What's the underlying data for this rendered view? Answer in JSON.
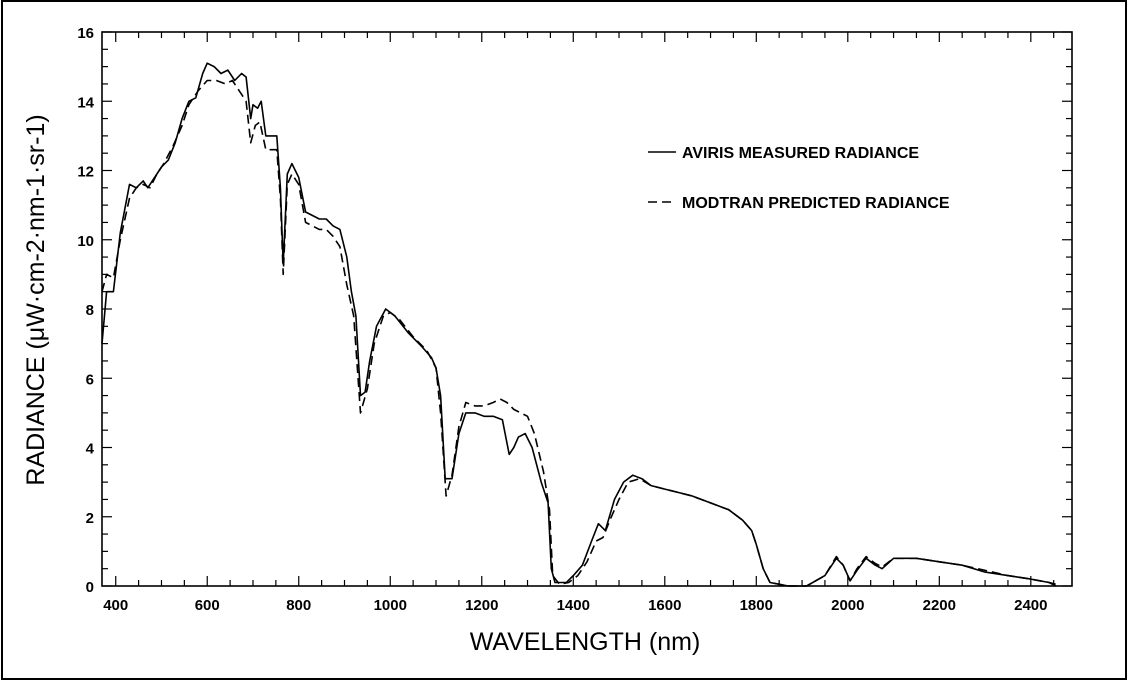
{
  "chart_data": {
    "type": "line",
    "xlabel": "WAVELENGTH (nm)",
    "ylabel": "RADIANCE (μW·cm-2·nm-1·sr-1)",
    "xlim": [
      370,
      2490
    ],
    "ylim": [
      0,
      16
    ],
    "x_ticks": [
      400,
      600,
      800,
      1000,
      1200,
      1400,
      1600,
      1800,
      2000,
      2200,
      2400
    ],
    "y_ticks": [
      0,
      2,
      4,
      6,
      8,
      10,
      12,
      14,
      16
    ],
    "legend_position": "top-right",
    "grid": false,
    "series": [
      {
        "name": "AVIRIS MEASURED RADIANCE",
        "style": "solid",
        "color": "#000000",
        "points": [
          [
            370,
            7.0
          ],
          [
            380,
            8.5
          ],
          [
            395,
            8.5
          ],
          [
            410,
            10.2
          ],
          [
            430,
            11.6
          ],
          [
            445,
            11.5
          ],
          [
            460,
            11.7
          ],
          [
            470,
            11.5
          ],
          [
            485,
            11.8
          ],
          [
            500,
            12.1
          ],
          [
            515,
            12.3
          ],
          [
            530,
            12.8
          ],
          [
            545,
            13.5
          ],
          [
            560,
            14.0
          ],
          [
            575,
            14.1
          ],
          [
            590,
            14.8
          ],
          [
            600,
            15.1
          ],
          [
            615,
            15.0
          ],
          [
            630,
            14.8
          ],
          [
            645,
            14.9
          ],
          [
            660,
            14.6
          ],
          [
            675,
            14.8
          ],
          [
            685,
            14.7
          ],
          [
            695,
            13.5
          ],
          [
            700,
            13.9
          ],
          [
            710,
            13.8
          ],
          [
            718,
            14.0
          ],
          [
            728,
            13.0
          ],
          [
            740,
            13.0
          ],
          [
            752,
            13.0
          ],
          [
            760,
            11.5
          ],
          [
            766,
            9.3
          ],
          [
            775,
            11.9
          ],
          [
            785,
            12.2
          ],
          [
            800,
            11.8
          ],
          [
            815,
            10.8
          ],
          [
            830,
            10.7
          ],
          [
            845,
            10.6
          ],
          [
            860,
            10.6
          ],
          [
            875,
            10.4
          ],
          [
            890,
            10.3
          ],
          [
            905,
            9.5
          ],
          [
            915,
            8.5
          ],
          [
            925,
            7.8
          ],
          [
            935,
            5.5
          ],
          [
            945,
            5.6
          ],
          [
            955,
            6.5
          ],
          [
            970,
            7.5
          ],
          [
            990,
            8.0
          ],
          [
            1010,
            7.8
          ],
          [
            1040,
            7.3
          ],
          [
            1070,
            6.9
          ],
          [
            1090,
            6.6
          ],
          [
            1100,
            6.3
          ],
          [
            1110,
            5.5
          ],
          [
            1120,
            3.1
          ],
          [
            1135,
            3.1
          ],
          [
            1150,
            4.4
          ],
          [
            1165,
            5.0
          ],
          [
            1185,
            5.0
          ],
          [
            1205,
            4.9
          ],
          [
            1225,
            4.9
          ],
          [
            1245,
            4.8
          ],
          [
            1260,
            3.8
          ],
          [
            1270,
            4.0
          ],
          [
            1280,
            4.3
          ],
          [
            1295,
            4.4
          ],
          [
            1310,
            4.0
          ],
          [
            1330,
            3.0
          ],
          [
            1345,
            2.4
          ],
          [
            1352,
            0.5
          ],
          [
            1360,
            0.1
          ],
          [
            1385,
            0.1
          ],
          [
            1400,
            0.3
          ],
          [
            1420,
            0.6
          ],
          [
            1440,
            1.3
          ],
          [
            1455,
            1.8
          ],
          [
            1470,
            1.6
          ],
          [
            1490,
            2.5
          ],
          [
            1510,
            3.0
          ],
          [
            1530,
            3.2
          ],
          [
            1550,
            3.1
          ],
          [
            1570,
            2.9
          ],
          [
            1600,
            2.8
          ],
          [
            1630,
            2.7
          ],
          [
            1660,
            2.6
          ],
          [
            1700,
            2.4
          ],
          [
            1740,
            2.2
          ],
          [
            1770,
            1.9
          ],
          [
            1790,
            1.6
          ],
          [
            1800,
            1.2
          ],
          [
            1815,
            0.5
          ],
          [
            1830,
            0.1
          ],
          [
            1870,
            0.0
          ],
          [
            1910,
            0.0
          ],
          [
            1950,
            0.3
          ],
          [
            1975,
            0.8
          ],
          [
            1990,
            0.6
          ],
          [
            2005,
            0.15
          ],
          [
            2020,
            0.45
          ],
          [
            2040,
            0.8
          ],
          [
            2060,
            0.6
          ],
          [
            2075,
            0.5
          ],
          [
            2100,
            0.8
          ],
          [
            2150,
            0.8
          ],
          [
            2200,
            0.7
          ],
          [
            2250,
            0.6
          ],
          [
            2300,
            0.4
          ],
          [
            2350,
            0.3
          ],
          [
            2400,
            0.2
          ],
          [
            2440,
            0.1
          ],
          [
            2455,
            0.0
          ]
        ]
      },
      {
        "name": "MODTRAN PREDICTED RADIANCE",
        "style": "dashed",
        "color": "#000000",
        "points": [
          [
            370,
            8.5
          ],
          [
            380,
            9.0
          ],
          [
            395,
            8.9
          ],
          [
            410,
            10.0
          ],
          [
            430,
            11.2
          ],
          [
            445,
            11.5
          ],
          [
            460,
            11.6
          ],
          [
            475,
            11.5
          ],
          [
            490,
            11.9
          ],
          [
            505,
            12.2
          ],
          [
            525,
            12.7
          ],
          [
            545,
            13.3
          ],
          [
            560,
            13.9
          ],
          [
            580,
            14.3
          ],
          [
            600,
            14.6
          ],
          [
            620,
            14.6
          ],
          [
            640,
            14.5
          ],
          [
            655,
            14.6
          ],
          [
            670,
            14.3
          ],
          [
            685,
            14.0
          ],
          [
            695,
            12.8
          ],
          [
            705,
            13.3
          ],
          [
            715,
            13.4
          ],
          [
            728,
            12.6
          ],
          [
            740,
            12.6
          ],
          [
            752,
            12.6
          ],
          [
            760,
            11.2
          ],
          [
            766,
            9.0
          ],
          [
            775,
            11.6
          ],
          [
            785,
            11.9
          ],
          [
            800,
            11.6
          ],
          [
            815,
            10.5
          ],
          [
            830,
            10.4
          ],
          [
            845,
            10.3
          ],
          [
            860,
            10.3
          ],
          [
            875,
            10.1
          ],
          [
            890,
            9.8
          ],
          [
            905,
            8.7
          ],
          [
            920,
            7.8
          ],
          [
            935,
            5.0
          ],
          [
            950,
            5.7
          ],
          [
            965,
            7.0
          ],
          [
            985,
            7.8
          ],
          [
            1000,
            7.9
          ],
          [
            1020,
            7.7
          ],
          [
            1050,
            7.2
          ],
          [
            1080,
            6.8
          ],
          [
            1100,
            6.3
          ],
          [
            1110,
            5.0
          ],
          [
            1122,
            2.6
          ],
          [
            1135,
            3.2
          ],
          [
            1150,
            4.6
          ],
          [
            1165,
            5.3
          ],
          [
            1185,
            5.2
          ],
          [
            1205,
            5.2
          ],
          [
            1225,
            5.3
          ],
          [
            1240,
            5.4
          ],
          [
            1255,
            5.3
          ],
          [
            1270,
            5.1
          ],
          [
            1285,
            5.0
          ],
          [
            1300,
            4.9
          ],
          [
            1315,
            4.4
          ],
          [
            1335,
            3.3
          ],
          [
            1348,
            2.2
          ],
          [
            1355,
            0.3
          ],
          [
            1370,
            0.05
          ],
          [
            1390,
            0.1
          ],
          [
            1410,
            0.3
          ],
          [
            1430,
            0.7
          ],
          [
            1450,
            1.3
          ],
          [
            1465,
            1.4
          ],
          [
            1480,
            1.9
          ],
          [
            1500,
            2.5
          ],
          [
            1520,
            3.0
          ],
          [
            1545,
            3.1
          ],
          [
            1570,
            2.9
          ],
          [
            1600,
            2.8
          ],
          [
            1630,
            2.7
          ],
          [
            1660,
            2.6
          ],
          [
            1700,
            2.4
          ],
          [
            1740,
            2.2
          ],
          [
            1770,
            1.9
          ],
          [
            1790,
            1.6
          ],
          [
            1800,
            1.2
          ],
          [
            1815,
            0.5
          ],
          [
            1830,
            0.1
          ],
          [
            1870,
            0.0
          ],
          [
            1910,
            0.0
          ],
          [
            1950,
            0.3
          ],
          [
            1975,
            0.85
          ],
          [
            1990,
            0.6
          ],
          [
            2005,
            0.15
          ],
          [
            2020,
            0.5
          ],
          [
            2040,
            0.85
          ],
          [
            2060,
            0.65
          ],
          [
            2075,
            0.55
          ],
          [
            2100,
            0.8
          ],
          [
            2150,
            0.8
          ],
          [
            2200,
            0.7
          ],
          [
            2250,
            0.6
          ],
          [
            2300,
            0.45
          ],
          [
            2350,
            0.3
          ],
          [
            2400,
            0.2
          ],
          [
            2440,
            0.1
          ],
          [
            2455,
            0.05
          ]
        ]
      }
    ]
  }
}
